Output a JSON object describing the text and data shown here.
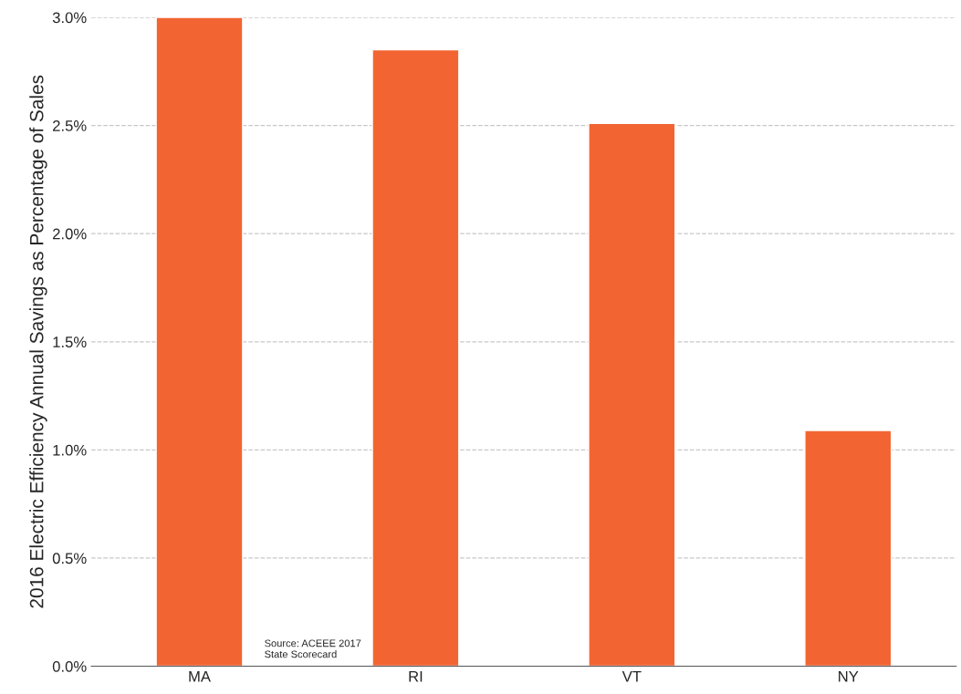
{
  "chart_data": {
    "type": "bar",
    "ylabel": "2016 Electric Efficiency Annual Savings as Percentage of Sales",
    "categories": [
      "MA",
      "RI",
      "VT",
      "NY"
    ],
    "values": [
      3.0,
      2.85,
      2.51,
      1.09
    ],
    "color": "#f26532",
    "ylim": [
      0,
      3.0
    ],
    "yticks": [
      {
        "value": 0,
        "label": "0.0%"
      },
      {
        "value": 0.5,
        "label": "0.5%"
      },
      {
        "value": 1.0,
        "label": "1.0%"
      },
      {
        "value": 1.5,
        "label": "1.5%"
      },
      {
        "value": 2.0,
        "label": "2.0%"
      },
      {
        "value": 2.5,
        "label": "2.5%"
      },
      {
        "value": 3.0,
        "label": "3.0%"
      }
    ],
    "grid": "y",
    "annotations": [
      "Source: ACEEE 2017\nState Scorecard"
    ]
  }
}
